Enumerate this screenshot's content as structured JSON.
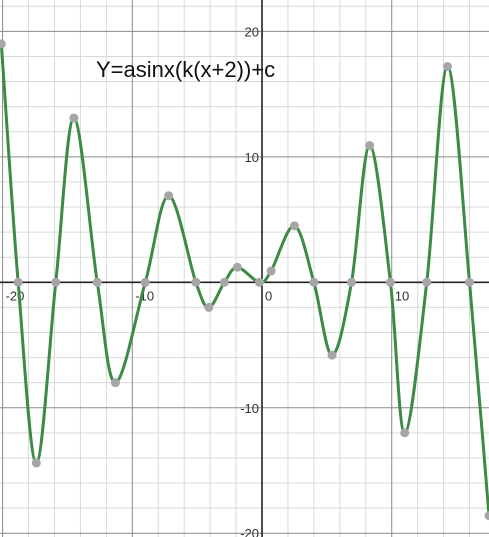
{
  "chart_data": {
    "type": "line",
    "title": "Y=asinx(k(x+2))+c",
    "xlabel": "",
    "ylabel": "",
    "xlim": [
      -20.2,
      17.5
    ],
    "ylim": [
      -20.3,
      22.5
    ],
    "grid": true,
    "minor_grid_step": 2,
    "major_grid_step": 10,
    "x_tick_labels": [
      "-20",
      "-10",
      "0",
      "10"
    ],
    "x_tick_values": [
      -20,
      -10,
      0,
      10
    ],
    "y_tick_labels": [
      "20",
      "10",
      "-10",
      "-20"
    ],
    "y_tick_values": [
      20,
      10,
      -10,
      -20
    ],
    "series": [
      {
        "color": "#3d8a45",
        "marker_color": "#a6a6a6",
        "points": [
          {
            "x": -20.1,
            "y": 19.0
          },
          {
            "x": -18.8,
            "y": 0
          },
          {
            "x": -17.4,
            "y": -14.4
          },
          {
            "x": -15.9,
            "y": 0
          },
          {
            "x": -14.5,
            "y": 13.1
          },
          {
            "x": -12.7,
            "y": 0
          },
          {
            "x": -11.3,
            "y": -8.0
          },
          {
            "x": -9.0,
            "y": 0
          },
          {
            "x": -7.2,
            "y": 6.9
          },
          {
            "x": -5.1,
            "y": 0
          },
          {
            "x": -4.1,
            "y": -2.0
          },
          {
            "x": -2.9,
            "y": 0
          },
          {
            "x": -1.9,
            "y": 1.2
          },
          {
            "x": -0.2,
            "y": 0
          },
          {
            "x": 0.7,
            "y": 0.9
          },
          {
            "x": 2.5,
            "y": 4.5
          },
          {
            "x": 4.0,
            "y": 0
          },
          {
            "x": 5.4,
            "y": -5.8
          },
          {
            "x": 6.9,
            "y": 0
          },
          {
            "x": 8.3,
            "y": 10.9
          },
          {
            "x": 9.9,
            "y": 0
          },
          {
            "x": 11.0,
            "y": -12.0
          },
          {
            "x": 12.7,
            "y": 0
          },
          {
            "x": 14.3,
            "y": 17.2
          },
          {
            "x": 16.0,
            "y": 0
          },
          {
            "x": 17.5,
            "y": -18.6
          }
        ]
      }
    ]
  }
}
